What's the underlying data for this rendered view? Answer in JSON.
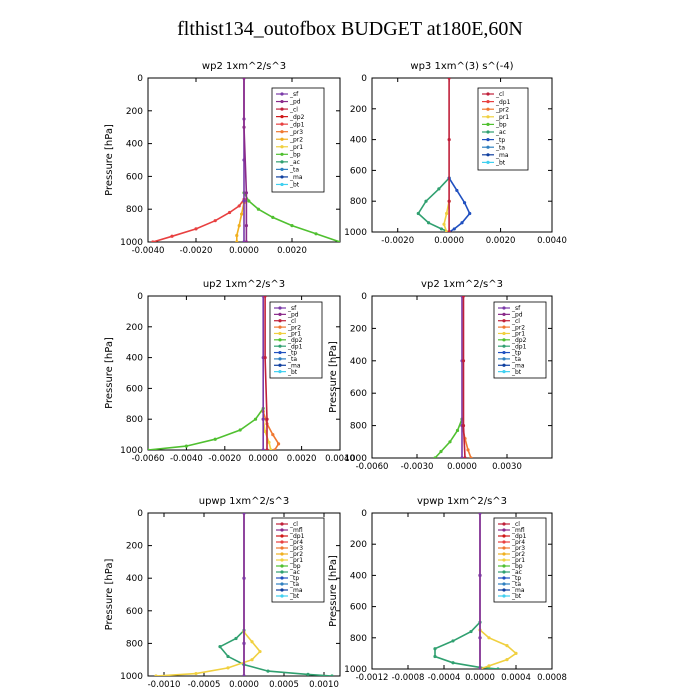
{
  "page": {
    "title": "flthist134_outofbox  BUDGET at180E,60N"
  },
  "chart_data": [
    {
      "type": "line",
      "title": "wp2   1xm^2/s^3",
      "ylabel": "Pressure [hPa]",
      "xlabel": "",
      "xlim": [
        -0.004,
        0.004
      ],
      "ylim": [
        1000,
        0
      ],
      "yticks": [
        0,
        200,
        400,
        600,
        800,
        1000
      ],
      "xticks": [
        {
          "v": -0.004,
          "t": "-0.0040"
        },
        {
          "v": -0.002,
          "t": "-0.0020"
        },
        {
          "v": 0,
          "t": "0.0000"
        },
        {
          "v": 0.002,
          "t": "0.0020"
        }
      ],
      "legend": [
        {
          "name": "_sf",
          "color": "#7a3aa8"
        },
        {
          "name": "_pd",
          "color": "#8a2a8a"
        },
        {
          "name": "_cl",
          "color": "#c0203a"
        },
        {
          "name": "_dp2",
          "color": "#d01818"
        },
        {
          "name": "_dp1",
          "color": "#e84040"
        },
        {
          "name": "_pr3",
          "color": "#f07830"
        },
        {
          "name": "_pr2",
          "color": "#f0b020"
        },
        {
          "name": "_pr1",
          "color": "#f0d040"
        },
        {
          "name": "_bp",
          "color": "#50c030"
        },
        {
          "name": "_ac",
          "color": "#30a070"
        },
        {
          "name": "_ta",
          "color": "#3080c0"
        },
        {
          "name": "_ma",
          "color": "#1040a0"
        },
        {
          "name": "_bt",
          "color": "#40d0f0"
        }
      ],
      "series": [
        {
          "name": "_bp",
          "color": "#50c030",
          "x": [
            0,
            0.0002,
            0.0006,
            0.0012,
            0.002,
            0.003,
            0.004
          ],
          "y": [
            700,
            750,
            800,
            850,
            900,
            950,
            1000
          ]
        },
        {
          "name": "_dp1",
          "color": "#e84040",
          "x": [
            0,
            -0.0002,
            -0.0006,
            -0.0012,
            -0.002,
            -0.003,
            -0.0038
          ],
          "y": [
            740,
            780,
            820,
            870,
            920,
            965,
            1000
          ]
        },
        {
          "name": "_pr2",
          "color": "#f0b020",
          "x": [
            0,
            -0.0001,
            -0.0002,
            -0.0003,
            -0.0003
          ],
          "y": [
            760,
            830,
            900,
            960,
            1000
          ]
        },
        {
          "name": "_sf",
          "color": "#7a3aa8",
          "x": [
            0,
            0,
            0,
            0,
            0
          ],
          "y": [
            0,
            250,
            500,
            750,
            1000
          ]
        },
        {
          "name": "_pd",
          "color": "#8a2a8a",
          "x": [
            0,
            0,
            0.0001,
            0.0001,
            0.0001
          ],
          "y": [
            0,
            300,
            700,
            900,
            1000
          ]
        }
      ]
    },
    {
      "type": "line",
      "title": "wp3   1xm^(3) s^(-4)",
      "ylabel": "",
      "xlabel": "",
      "xlim": [
        -0.003,
        0.004
      ],
      "ylim": [
        1000,
        0
      ],
      "yticks": [
        0,
        200,
        400,
        600,
        800,
        1000
      ],
      "xticks": [
        {
          "v": -0.002,
          "t": "-0.0020"
        },
        {
          "v": 0,
          "t": "0.0000"
        },
        {
          "v": 0.002,
          "t": "0.0020"
        },
        {
          "v": 0.004,
          "t": "0.0040"
        }
      ],
      "legend": [
        {
          "name": "_cl",
          "color": "#c0203a"
        },
        {
          "name": "_dp1",
          "color": "#e84040"
        },
        {
          "name": "_pr2",
          "color": "#f07830"
        },
        {
          "name": "_pr1",
          "color": "#f0d040"
        },
        {
          "name": "_bp",
          "color": "#50c030"
        },
        {
          "name": "_ac",
          "color": "#30a070"
        },
        {
          "name": "_tp",
          "color": "#2050c0"
        },
        {
          "name": "_ta",
          "color": "#3080c0"
        },
        {
          "name": "_ma",
          "color": "#1040a0"
        },
        {
          "name": "_bt",
          "color": "#40d0f0"
        }
      ],
      "series": [
        {
          "name": "_ac",
          "color": "#30a070",
          "x": [
            0,
            -0.0004,
            -0.0009,
            -0.0012,
            -0.0008,
            -0.0003,
            0
          ],
          "y": [
            650,
            720,
            800,
            880,
            940,
            980,
            1000
          ]
        },
        {
          "name": "_tp",
          "color": "#2050c0",
          "x": [
            0,
            0.0003,
            0.0006,
            0.0008,
            0.0005,
            0.0002,
            0
          ],
          "y": [
            650,
            730,
            810,
            880,
            940,
            980,
            1000
          ]
        },
        {
          "name": "_pr1",
          "color": "#f0d040",
          "x": [
            0,
            -0.0001,
            -0.0002,
            -0.0001
          ],
          "y": [
            800,
            880,
            950,
            1000
          ]
        },
        {
          "name": "_cl",
          "color": "#c0203a",
          "x": [
            0,
            0,
            0,
            0
          ],
          "y": [
            0,
            400,
            800,
            1000
          ]
        }
      ]
    },
    {
      "type": "line",
      "title": "up2   1xm^2/s^3",
      "ylabel": "Pressure [hPa]",
      "xlabel": "",
      "xlim": [
        -0.006,
        0.004
      ],
      "ylim": [
        1000,
        0
      ],
      "yticks": [
        0,
        200,
        400,
        600,
        800,
        1000
      ],
      "xticks": [
        {
          "v": -0.006,
          "t": "-0.0060"
        },
        {
          "v": -0.004,
          "t": "-0.0040"
        },
        {
          "v": -0.002,
          "t": "-0.0020"
        },
        {
          "v": 0,
          "t": "0.0000"
        },
        {
          "v": 0.002,
          "t": "0.0020"
        },
        {
          "v": 0.004,
          "t": "0.0040"
        }
      ],
      "legend": [
        {
          "name": "_sf",
          "color": "#7a3aa8"
        },
        {
          "name": "_pd",
          "color": "#8a2a8a"
        },
        {
          "name": "_cl",
          "color": "#c0203a"
        },
        {
          "name": "_pr2",
          "color": "#f07830"
        },
        {
          "name": "_pr1",
          "color": "#f0d040"
        },
        {
          "name": "_dp2",
          "color": "#50c030"
        },
        {
          "name": "_dp1",
          "color": "#30a070"
        },
        {
          "name": "_tp",
          "color": "#2050c0"
        },
        {
          "name": "_ta",
          "color": "#3080c0"
        },
        {
          "name": "_ma",
          "color": "#1040a0"
        },
        {
          "name": "_bt",
          "color": "#40d0f0"
        }
      ],
      "series": [
        {
          "name": "_dp2",
          "color": "#50c030",
          "x": [
            0,
            -0.0004,
            -0.0012,
            -0.0025,
            -0.004,
            -0.006
          ],
          "y": [
            730,
            800,
            870,
            930,
            975,
            1000
          ]
        },
        {
          "name": "_pr2",
          "color": "#f07830",
          "x": [
            0,
            0.0002,
            0.0005,
            0.0008,
            0.0006
          ],
          "y": [
            750,
            830,
            900,
            960,
            1000
          ]
        },
        {
          "name": "_pr1",
          "color": "#f0d040",
          "x": [
            0,
            0.0001,
            0.0003,
            0.0004
          ],
          "y": [
            800,
            880,
            950,
            1000
          ]
        },
        {
          "name": "_sf",
          "color": "#7a3aa8",
          "x": [
            0,
            0,
            0,
            0
          ],
          "y": [
            0,
            400,
            800,
            1000
          ]
        },
        {
          "name": "_cl",
          "color": "#c0203a",
          "x": [
            0.0001,
            0.0001,
            0.0002,
            0.0002
          ],
          "y": [
            0,
            400,
            800,
            1000
          ]
        }
      ]
    },
    {
      "type": "line",
      "title": "vp2   1xm^2/s^3",
      "ylabel": "Pressure [hPa]",
      "xlabel": "",
      "xlim": [
        -0.006,
        0.006
      ],
      "ylim": [
        1000,
        0
      ],
      "yticks": [
        0,
        200,
        400,
        600,
        800,
        1000
      ],
      "xticks": [
        {
          "v": -0.006,
          "t": "-0.0060"
        },
        {
          "v": -0.003,
          "t": "-0.0030"
        },
        {
          "v": 0,
          "t": "0.0000"
        },
        {
          "v": 0.003,
          "t": "0.0030"
        }
      ],
      "legend": [
        {
          "name": "_sf",
          "color": "#7a3aa8"
        },
        {
          "name": "_pd",
          "color": "#8a2a8a"
        },
        {
          "name": "_cl",
          "color": "#c0203a"
        },
        {
          "name": "_pr2",
          "color": "#f07830"
        },
        {
          "name": "_pr1",
          "color": "#f0d040"
        },
        {
          "name": "_dp2",
          "color": "#50c030"
        },
        {
          "name": "_dp1",
          "color": "#30a070"
        },
        {
          "name": "_tp",
          "color": "#2050c0"
        },
        {
          "name": "_ta",
          "color": "#3080c0"
        },
        {
          "name": "_ma",
          "color": "#1040a0"
        },
        {
          "name": "_bt",
          "color": "#40d0f0"
        }
      ],
      "series": [
        {
          "name": "_dp2",
          "color": "#50c030",
          "x": [
            0,
            -0.0003,
            -0.0008,
            -0.0014,
            -0.0018
          ],
          "y": [
            760,
            830,
            900,
            960,
            1000
          ]
        },
        {
          "name": "_pr2",
          "color": "#f07830",
          "x": [
            0,
            0.0002,
            0.0004,
            0.0006
          ],
          "y": [
            800,
            880,
            950,
            1000
          ]
        },
        {
          "name": "_sf",
          "color": "#7a3aa8",
          "x": [
            0,
            0,
            0,
            0
          ],
          "y": [
            0,
            400,
            800,
            1000
          ]
        },
        {
          "name": "_cl",
          "color": "#c0203a",
          "x": [
            0.0001,
            0.0001,
            0.0001,
            0.0002
          ],
          "y": [
            0,
            400,
            800,
            1000
          ]
        }
      ]
    },
    {
      "type": "line",
      "title": "upwp   1xm^2/s^3",
      "ylabel": "Pressure [hPa]",
      "xlabel": "",
      "xlim": [
        -0.0012,
        0.0012
      ],
      "ylim": [
        1000,
        0
      ],
      "yticks": [
        0,
        200,
        400,
        600,
        800,
        1000
      ],
      "xticks": [
        {
          "v": -0.001,
          "t": "-0.0010"
        },
        {
          "v": -0.0005,
          "t": "-0.0005"
        },
        {
          "v": 0,
          "t": "0.0000"
        },
        {
          "v": 0.0005,
          "t": "0.0005"
        },
        {
          "v": 0.001,
          "t": "0.0010"
        }
      ],
      "legend": [
        {
          "name": "_cl",
          "color": "#c0203a"
        },
        {
          "name": "_mfl",
          "color": "#8a2a8a"
        },
        {
          "name": "_dp1",
          "color": "#d01818"
        },
        {
          "name": "_pr4",
          "color": "#e84040"
        },
        {
          "name": "_pr3",
          "color": "#f07830"
        },
        {
          "name": "_pr2",
          "color": "#f0b020"
        },
        {
          "name": "_pr1",
          "color": "#f0d040"
        },
        {
          "name": "_bp",
          "color": "#50c030"
        },
        {
          "name": "_ac",
          "color": "#30a070"
        },
        {
          "name": "_tp",
          "color": "#2050c0"
        },
        {
          "name": "_ta",
          "color": "#3080c0"
        },
        {
          "name": "_ma",
          "color": "#1040a0"
        },
        {
          "name": "_bt",
          "color": "#40d0f0"
        }
      ],
      "series": [
        {
          "name": "_ac",
          "color": "#30a070",
          "x": [
            0,
            -0.0001,
            -0.0003,
            -0.0002,
            0,
            0.0003,
            0.0008,
            0.0011
          ],
          "y": [
            720,
            770,
            820,
            880,
            930,
            970,
            990,
            1000
          ]
        },
        {
          "name": "_pr1",
          "color": "#f0d040",
          "x": [
            0,
            0.0001,
            0.0002,
            0.0001,
            -0.0002,
            -0.0006,
            -0.0011
          ],
          "y": [
            730,
            790,
            850,
            900,
            950,
            985,
            1000
          ]
        },
        {
          "name": "_dp1",
          "color": "#d01818",
          "x": [
            0,
            0,
            0,
            0
          ],
          "y": [
            0,
            400,
            800,
            1000
          ]
        },
        {
          "name": "_cl",
          "color": "#7a3aa8",
          "x": [
            0,
            0,
            0,
            0
          ],
          "y": [
            0,
            400,
            800,
            1000
          ]
        }
      ]
    },
    {
      "type": "line",
      "title": "vpwp   1xm^2/s^3",
      "ylabel": "Pressure [hPa]",
      "xlabel": "",
      "xlim": [
        -0.0012,
        0.0008
      ],
      "ylim": [
        1000,
        0
      ],
      "yticks": [
        0,
        200,
        400,
        600,
        800,
        1000
      ],
      "xticks": [
        {
          "v": -0.0012,
          "t": "-0.0012"
        },
        {
          "v": -0.0008,
          "t": "-0.0008"
        },
        {
          "v": -0.0004,
          "t": "-0.0004"
        },
        {
          "v": 0,
          "t": "0.0000"
        },
        {
          "v": 0.0004,
          "t": "0.0004"
        },
        {
          "v": 0.0008,
          "t": "0.0008"
        }
      ],
      "legend": [
        {
          "name": "_cl",
          "color": "#c0203a"
        },
        {
          "name": "_mfl",
          "color": "#8a2a8a"
        },
        {
          "name": "_dp1",
          "color": "#d01818"
        },
        {
          "name": "_pr4",
          "color": "#e84040"
        },
        {
          "name": "_pr3",
          "color": "#f07830"
        },
        {
          "name": "_pr2",
          "color": "#f0b020"
        },
        {
          "name": "_pr1",
          "color": "#f0d040"
        },
        {
          "name": "_bp",
          "color": "#50c030"
        },
        {
          "name": "_ac",
          "color": "#30a070"
        },
        {
          "name": "_tp",
          "color": "#2050c0"
        },
        {
          "name": "_ta",
          "color": "#3080c0"
        },
        {
          "name": "_ma",
          "color": "#1040a0"
        },
        {
          "name": "_bt",
          "color": "#40d0f0"
        }
      ],
      "series": [
        {
          "name": "_ac",
          "color": "#30a070",
          "x": [
            0,
            -0.0001,
            -0.0003,
            -0.0005,
            -0.0005,
            -0.0003,
            0,
            0.0002
          ],
          "y": [
            700,
            760,
            820,
            870,
            920,
            960,
            990,
            1000
          ]
        },
        {
          "name": "_pr1",
          "color": "#f0d040",
          "x": [
            0,
            0.0001,
            0.0003,
            0.0004,
            0.0003,
            0.0001,
            0
          ],
          "y": [
            750,
            800,
            850,
            900,
            940,
            980,
            1000
          ]
        },
        {
          "name": "_dp1",
          "color": "#d01818",
          "x": [
            0,
            0,
            0,
            0
          ],
          "y": [
            0,
            400,
            800,
            1000
          ]
        },
        {
          "name": "_cl",
          "color": "#7a3aa8",
          "x": [
            0,
            0,
            0,
            0
          ],
          "y": [
            0,
            400,
            800,
            1000
          ]
        }
      ]
    }
  ]
}
